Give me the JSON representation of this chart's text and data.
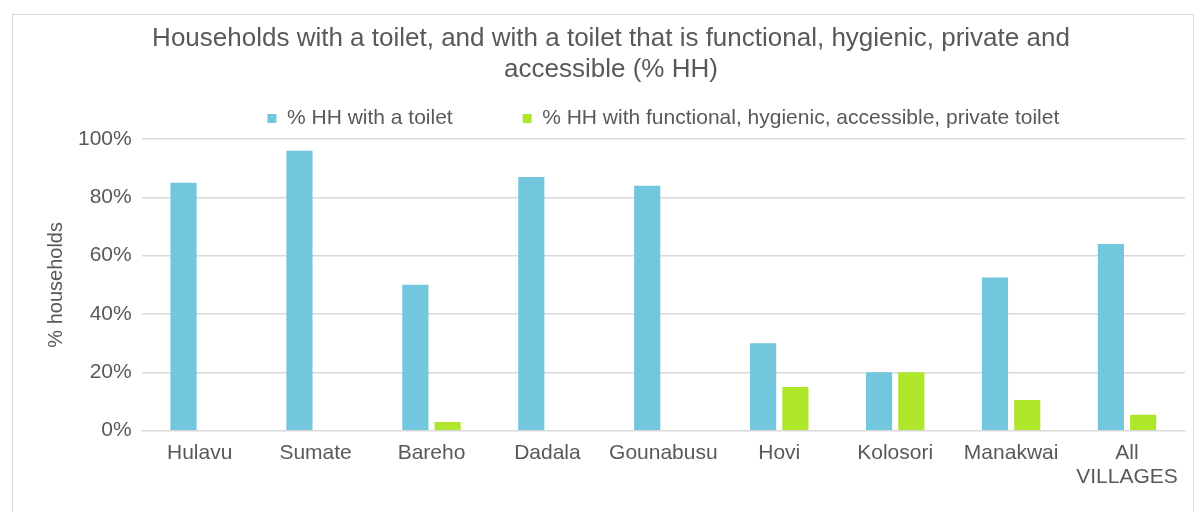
{
  "chart_data": {
    "type": "bar",
    "title": "Households with a toilet, and with a toilet that is functional, hygienic, private and accessible (% HH)",
    "ylabel": "% households",
    "categories": [
      "Hulavu",
      "Sumate",
      "Bareho",
      "Dadala",
      "Gounabusu",
      "Hovi",
      "Kolosori",
      "Manakwai",
      "All VILLAGES"
    ],
    "series": [
      {
        "name": "% HH with a toilet",
        "color": "#72c6de",
        "values": [
          85,
          96,
          50,
          87,
          84,
          30,
          20,
          52.5,
          64
        ]
      },
      {
        "name": "% HH with functional, hygienic, accessible, private toilet",
        "color": "#aee62a",
        "values": [
          0,
          0,
          3,
          0,
          0,
          15,
          20,
          10.5,
          5.5
        ]
      }
    ],
    "ylim": [
      0,
      100
    ],
    "yticks": [
      {
        "value": 0,
        "label": "0%"
      },
      {
        "value": 20,
        "label": "20%"
      },
      {
        "value": 40,
        "label": "40%"
      },
      {
        "value": 60,
        "label": "60%"
      },
      {
        "value": 80,
        "label": "80%"
      },
      {
        "value": 100,
        "label": "100%"
      }
    ],
    "grid": "y",
    "legend": "top"
  }
}
